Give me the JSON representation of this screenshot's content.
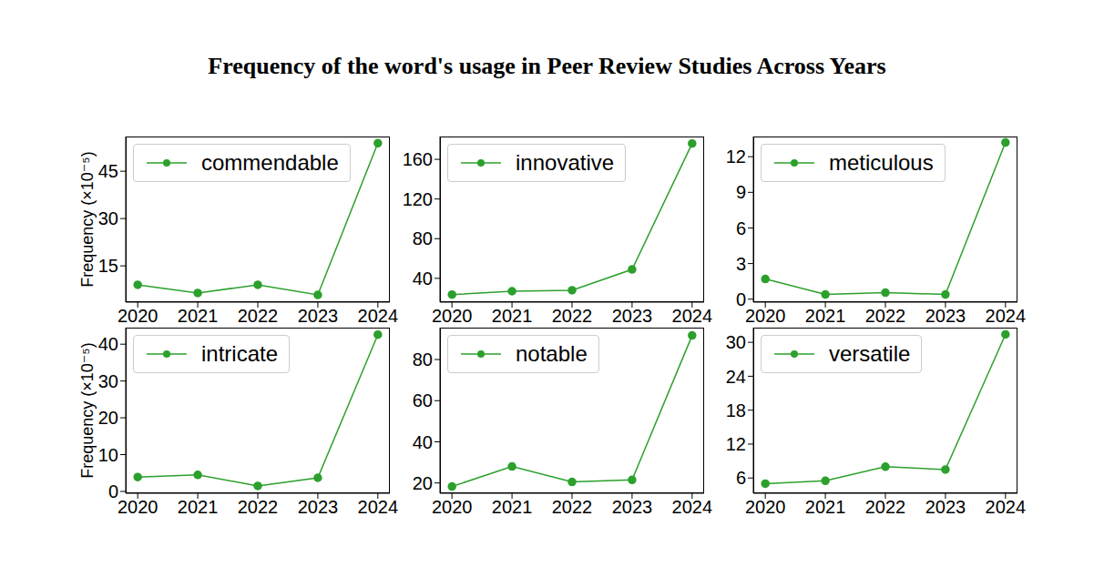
{
  "title": "Frequency of the word's usage in Peer Review Studies Across Years",
  "chart_data": [
    {
      "type": "line",
      "ylabel": "Frequency (×10⁻⁵)",
      "x": [
        2020,
        2021,
        2022,
        2023,
        2024
      ],
      "series": [
        {
          "name": "commendable",
          "color": "#2ca02c",
          "marker": "circle",
          "values": [
            9,
            6.4,
            9,
            5.8,
            53.9
          ]
        }
      ],
      "xlim": [
        2019.8,
        2024.2
      ],
      "xticks": [
        2020,
        2021,
        2022,
        2023,
        2024
      ],
      "ylim": [
        3.5,
        56
      ],
      "yticks": [
        15,
        30,
        45
      ],
      "legend": "upper left",
      "grid": false
    },
    {
      "type": "line",
      "x": [
        2020,
        2021,
        2022,
        2023,
        2024
      ],
      "series": [
        {
          "name": "innovative",
          "color": "#2ca02c",
          "marker": "circle",
          "values": [
            23.6,
            27,
            28,
            49,
            176
          ]
        }
      ],
      "xlim": [
        2019.8,
        2024.2
      ],
      "xticks": [
        2020,
        2021,
        2022,
        2023,
        2024
      ],
      "ylim": [
        16,
        183
      ],
      "yticks": [
        40,
        80,
        120,
        160
      ],
      "legend": "upper left",
      "grid": false
    },
    {
      "type": "line",
      "x": [
        2020,
        2021,
        2022,
        2023,
        2024
      ],
      "series": [
        {
          "name": "meticulous",
          "color": "#2ca02c",
          "marker": "circle",
          "values": [
            1.7,
            0.4,
            0.55,
            0.4,
            13.2
          ]
        }
      ],
      "xlim": [
        2019.8,
        2024.2
      ],
      "xticks": [
        2020,
        2021,
        2022,
        2023,
        2024
      ],
      "ylim": [
        -0.25,
        13.7
      ],
      "yticks": [
        0,
        3,
        6,
        9,
        12
      ],
      "legend": "upper left",
      "grid": false
    },
    {
      "type": "line",
      "ylabel": "Frequency (×10⁻⁵)",
      "x": [
        2020,
        2021,
        2022,
        2023,
        2024
      ],
      "series": [
        {
          "name": "intricate",
          "color": "#2ca02c",
          "marker": "circle",
          "values": [
            3.9,
            4.5,
            1.5,
            3.7,
            42.6
          ]
        }
      ],
      "xlim": [
        2019.8,
        2024.2
      ],
      "xticks": [
        2020,
        2021,
        2022,
        2023,
        2024
      ],
      "ylim": [
        -0.5,
        44.5
      ],
      "yticks": [
        0,
        10,
        20,
        30,
        40
      ],
      "legend": "upper left",
      "grid": false
    },
    {
      "type": "line",
      "x": [
        2020,
        2021,
        2022,
        2023,
        2024
      ],
      "series": [
        {
          "name": "notable",
          "color": "#2ca02c",
          "marker": "circle",
          "values": [
            18.3,
            28,
            20.5,
            21.5,
            91.7
          ]
        }
      ],
      "xlim": [
        2019.8,
        2024.2
      ],
      "xticks": [
        2020,
        2021,
        2022,
        2023,
        2024
      ],
      "ylim": [
        15,
        95.5
      ],
      "yticks": [
        20,
        40,
        60,
        80
      ],
      "legend": "upper left",
      "grid": false
    },
    {
      "type": "line",
      "x": [
        2020,
        2021,
        2022,
        2023,
        2024
      ],
      "series": [
        {
          "name": "versatile",
          "color": "#2ca02c",
          "marker": "circle",
          "values": [
            5,
            5.5,
            8,
            7.5,
            31.4
          ]
        }
      ],
      "xlim": [
        2019.8,
        2024.2
      ],
      "xticks": [
        2020,
        2021,
        2022,
        2023,
        2024
      ],
      "ylim": [
        3.3,
        32.6
      ],
      "yticks": [
        6,
        12,
        18,
        24,
        30
      ],
      "legend": "upper left",
      "grid": false
    }
  ]
}
